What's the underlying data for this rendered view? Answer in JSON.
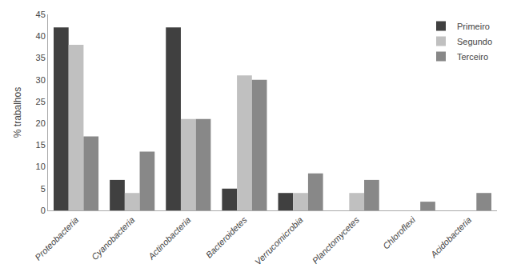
{
  "chart_data": {
    "type": "bar",
    "categories": [
      "Proteobacteria",
      "Cyanobacteria",
      "Actinobacteria",
      "Bacteroidetes",
      "Verrucomicrobia",
      "Planctomycetes",
      "Chloroflexi",
      "Acidobacteria"
    ],
    "series": [
      {
        "name": "Primeiro",
        "color": "#404040",
        "values": [
          42,
          7,
          42,
          5,
          4,
          0,
          0,
          0
        ]
      },
      {
        "name": "Segundo",
        "color": "#c0c0c0",
        "values": [
          38,
          4,
          21,
          31,
          4,
          4,
          0,
          0
        ]
      },
      {
        "name": "Terceiro",
        "color": "#888888",
        "values": [
          17,
          13.5,
          21,
          30,
          8.5,
          7,
          2,
          4
        ]
      }
    ],
    "ylabel": "% trabalhos",
    "ylim": [
      0,
      45
    ],
    "yticks": [
      0,
      5,
      10,
      15,
      20,
      25,
      30,
      35,
      40,
      45
    ],
    "grid": false,
    "legend": "upper right"
  }
}
